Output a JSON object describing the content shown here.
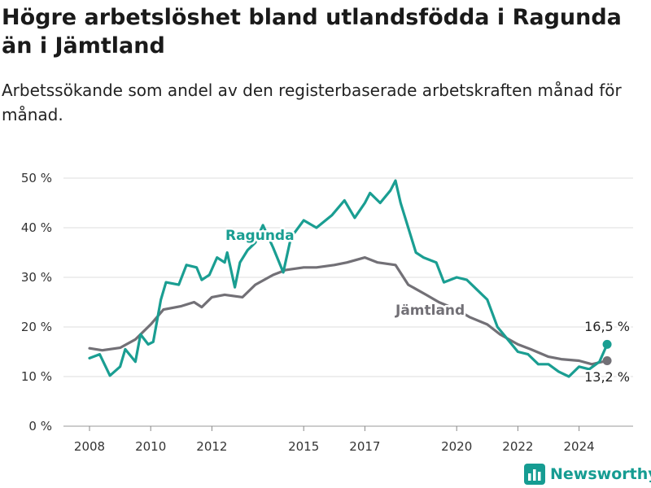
{
  "title": "Högre arbetslöshet bland utlandsfödda i Ragunda än i Jämtland",
  "subtitle": "Arbetssökande som andel av den registerbaserade arbetskraften månad för månad.",
  "logo_text": "Newsworthy",
  "chart_data": {
    "type": "line",
    "y_ticks": [
      "0 %",
      "10 %",
      "20 %",
      "30 %",
      "40 %",
      "50 %"
    ],
    "x_ticks": [
      "2008",
      "2010",
      "2012",
      "2015",
      "2017",
      "2020",
      "2022",
      "2024"
    ],
    "ylim": [
      0,
      50
    ],
    "grid": true,
    "colors": {
      "ragunda": "#1a9e92",
      "jamtland": "#727076"
    },
    "series": [
      {
        "name": "Ragunda",
        "color": "#1a9e92",
        "end_label": "16,5 %",
        "points": [
          [
            "2008-01",
            13.7
          ],
          [
            "2008-05",
            14.5
          ],
          [
            "2008-09",
            10.2
          ],
          [
            "2009-01",
            12
          ],
          [
            "2009-03",
            15.5
          ],
          [
            "2009-07",
            13
          ],
          [
            "2009-09",
            18.5
          ],
          [
            "2009-12",
            16.5
          ],
          [
            "2010-02",
            17
          ],
          [
            "2010-05",
            25.5
          ],
          [
            "2010-07",
            29
          ],
          [
            "2010-12",
            28.5
          ],
          [
            "2011-03",
            32.5
          ],
          [
            "2011-07",
            32
          ],
          [
            "2011-09",
            29.5
          ],
          [
            "2011-12",
            30.5
          ],
          [
            "2012-03",
            34
          ],
          [
            "2012-06",
            33
          ],
          [
            "2012-07",
            35
          ],
          [
            "2012-10",
            28
          ],
          [
            "2012-12",
            33
          ],
          [
            "2013-03",
            35.5
          ],
          [
            "2013-06",
            37
          ],
          [
            "2013-09",
            40.5
          ],
          [
            "2014-01",
            36
          ],
          [
            "2014-05",
            31
          ],
          [
            "2014-08",
            38
          ],
          [
            "2015-01",
            41.5
          ],
          [
            "2015-06",
            40
          ],
          [
            "2015-12",
            42.5
          ],
          [
            "2016-05",
            45.5
          ],
          [
            "2016-09",
            42
          ],
          [
            "2017-01",
            45
          ],
          [
            "2017-03",
            47
          ],
          [
            "2017-07",
            45
          ],
          [
            "2017-11",
            47.5
          ],
          [
            "2018-01",
            49.5
          ],
          [
            "2018-03",
            45
          ],
          [
            "2018-06",
            40
          ],
          [
            "2018-09",
            35
          ],
          [
            "2018-12",
            34
          ],
          [
            "2019-05",
            33
          ],
          [
            "2019-08",
            29
          ],
          [
            "2020-01",
            30
          ],
          [
            "2020-05",
            29.5
          ],
          [
            "2020-09",
            27.5
          ],
          [
            "2021-01",
            25.5
          ],
          [
            "2021-05",
            20
          ],
          [
            "2021-09",
            17.5
          ],
          [
            "2022-01",
            15
          ],
          [
            "2022-05",
            14.5
          ],
          [
            "2022-09",
            12.5
          ],
          [
            "2023-01",
            12.5
          ],
          [
            "2023-05",
            11
          ],
          [
            "2023-09",
            10
          ],
          [
            "2024-01",
            12
          ],
          [
            "2024-05",
            11.5
          ],
          [
            "2024-09",
            13
          ],
          [
            "2024-12",
            16.5
          ]
        ]
      },
      {
        "name": "Jämtland",
        "color": "#727076",
        "end_label": "13,2 %",
        "points": [
          [
            "2008-01",
            15.7
          ],
          [
            "2008-06",
            15.3
          ],
          [
            "2009-01",
            15.8
          ],
          [
            "2009-07",
            17.5
          ],
          [
            "2010-01",
            20.5
          ],
          [
            "2010-06",
            23.5
          ],
          [
            "2011-01",
            24.2
          ],
          [
            "2011-06",
            25
          ],
          [
            "2011-09",
            24
          ],
          [
            "2012-01",
            26
          ],
          [
            "2012-06",
            26.5
          ],
          [
            "2013-01",
            26
          ],
          [
            "2013-06",
            28.5
          ],
          [
            "2014-01",
            30.5
          ],
          [
            "2014-06",
            31.5
          ],
          [
            "2015-01",
            32
          ],
          [
            "2015-06",
            32
          ],
          [
            "2016-01",
            32.5
          ],
          [
            "2016-06",
            33
          ],
          [
            "2017-01",
            34
          ],
          [
            "2017-06",
            33
          ],
          [
            "2018-01",
            32.5
          ],
          [
            "2018-06",
            28.5
          ],
          [
            "2019-01",
            26.5
          ],
          [
            "2019-06",
            25
          ],
          [
            "2020-01",
            23.5
          ],
          [
            "2020-06",
            22
          ],
          [
            "2021-01",
            20.5
          ],
          [
            "2021-06",
            18.5
          ],
          [
            "2022-01",
            16.5
          ],
          [
            "2022-06",
            15.5
          ],
          [
            "2023-01",
            14
          ],
          [
            "2023-06",
            13.5
          ],
          [
            "2024-01",
            13.2
          ],
          [
            "2024-06",
            12.5
          ],
          [
            "2024-12",
            13.2
          ]
        ]
      }
    ]
  }
}
